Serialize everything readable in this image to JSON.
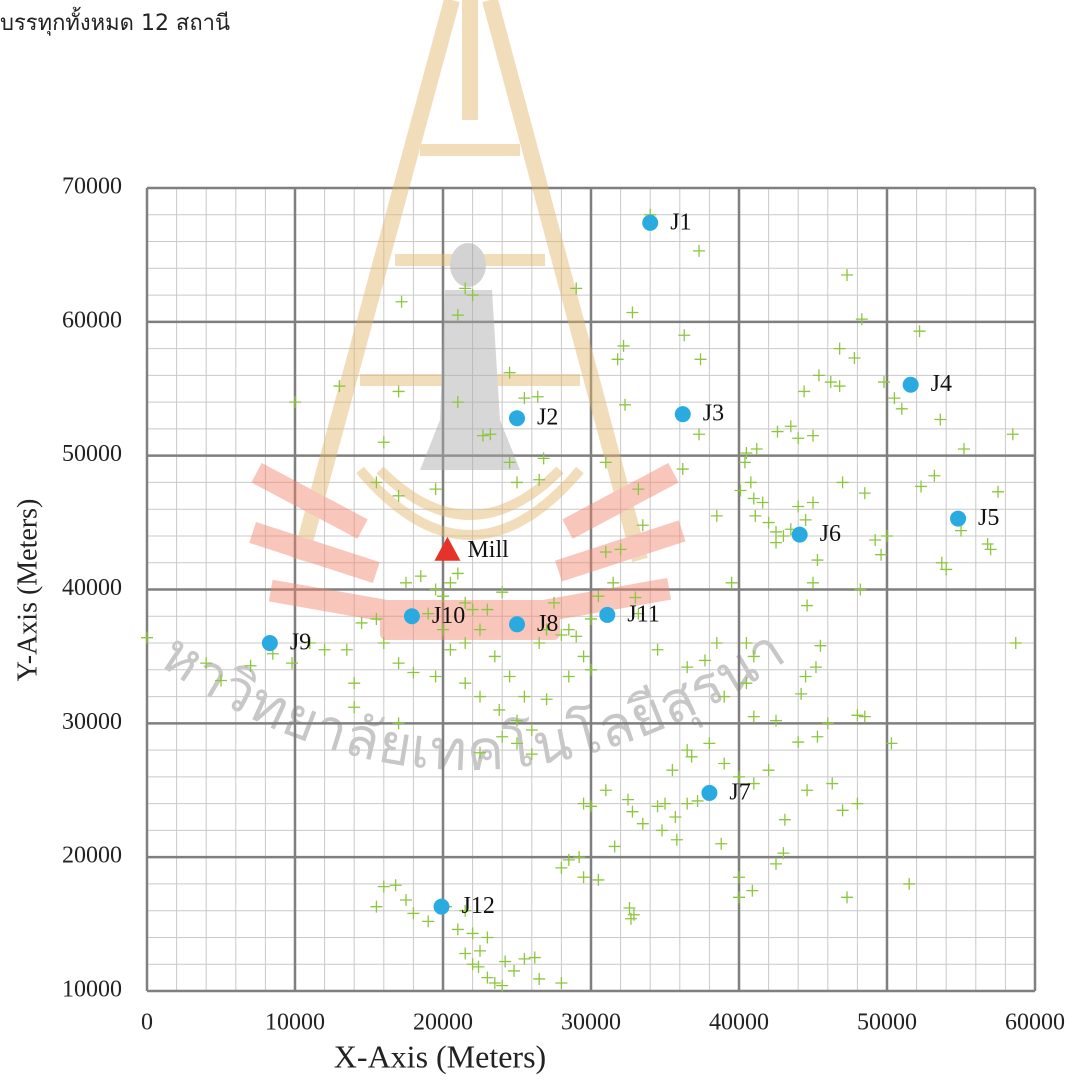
{
  "header_text": "บรรทุกทั้งหมด 12 สถานี",
  "watermark": "มหาวิทยาลัยเทคโนโลยีสุรนารี",
  "chart_data": {
    "type": "scatter",
    "x_label": "X-Axis (Meters)",
    "y_label": "Y-Axis (Meters)",
    "xlim": [
      0,
      60000
    ],
    "ylim": [
      10000,
      70000
    ],
    "xticks": [
      0,
      10000,
      20000,
      30000,
      40000,
      50000,
      60000
    ],
    "yticks": [
      10000,
      20000,
      30000,
      40000,
      50000,
      60000,
      70000
    ],
    "grid": true,
    "minor_grid": true,
    "series": [
      {
        "marker": "plus",
        "color": "#8cc63f",
        "x": [
          21500,
          22000,
          21000,
          17200,
          13000,
          17000,
          10000,
          21000,
          24500,
          25500,
          26400,
          22700,
          23200,
          24500,
          25000,
          26800,
          26500,
          29000,
          32800,
          32200,
          31800,
          32300,
          31000,
          33200,
          33500,
          34000,
          37300,
          36300,
          37400,
          37300,
          36200,
          38500,
          17000,
          16000,
          15500,
          19500,
          47300,
          48300,
          52200,
          46800,
          47800,
          46200,
          46800,
          45400,
          44400,
          49800,
          50500,
          51000,
          53600,
          43500,
          42600,
          44000,
          45000,
          40500,
          41200,
          40400,
          40800,
          40100,
          41000,
          41600,
          41100,
          42000,
          42500,
          43000,
          43500,
          42500,
          44500,
          45000,
          44000,
          45300,
          47000,
          48500,
          50000,
          49200,
          49600,
          48200,
          53700,
          54000,
          57000,
          57500,
          58500,
          55200,
          53200,
          52300,
          55000,
          56800,
          58700,
          17500,
          18500,
          19500,
          20000,
          20500,
          21000,
          21500,
          22000,
          19000,
          20000,
          20500,
          21500,
          22500,
          23000,
          24000,
          23500,
          24500,
          25500,
          26500,
          27000,
          27500,
          28000,
          28500,
          29000,
          29500,
          30000,
          30500,
          31500,
          31000,
          32000,
          33000,
          33200,
          34500,
          36500,
          37700,
          30000,
          28500,
          27000,
          26000,
          25000,
          23800,
          22500,
          21500,
          19500,
          18000,
          17000,
          16000,
          15500,
          14500,
          14000,
          13500,
          12000,
          11000,
          9800,
          8500,
          7000,
          5000,
          4000,
          0,
          14000,
          17000,
          22500,
          25000,
          26000,
          24000,
          38000,
          39000,
          40000,
          41000,
          36500,
          35500,
          36800,
          34500,
          35000,
          35700,
          36500,
          37200,
          35800,
          34800,
          33500,
          32500,
          32800,
          31000,
          30000,
          29500,
          29200,
          28500,
          28000,
          29500,
          30500,
          31600,
          32600,
          32900,
          32700,
          38800,
          40000,
          40000,
          40900,
          42500,
          43000,
          43100,
          42000,
          42500,
          44000,
          44200,
          44500,
          45200,
          45500,
          44600,
          45000,
          46000,
          46300,
          44600,
          45300,
          47000,
          47300,
          48000,
          48000,
          48500,
          50300,
          51500,
          41000,
          40500,
          41000,
          40500,
          39500,
          38500,
          39000,
          15500,
          16000,
          16800,
          17500,
          18000,
          19000,
          20200,
          21500,
          21000,
          22000,
          22500,
          23000,
          21500,
          22400,
          23000,
          23500,
          24200,
          24800,
          25500,
          26200,
          26500,
          28000,
          22000,
          24000
        ],
        "values": [
          62500,
          62000,
          60500,
          61500,
          55200,
          54800,
          54000,
          54000,
          56200,
          54300,
          54400,
          51500,
          51600,
          49500,
          48000,
          49800,
          48200,
          62500,
          60700,
          58200,
          57200,
          53800,
          49500,
          47500,
          44800,
          68000,
          65300,
          59000,
          57200,
          51600,
          49000,
          45500,
          47000,
          51000,
          48000,
          47500,
          63500,
          60200,
          59300,
          58000,
          57300,
          55500,
          55200,
          56000,
          54800,
          55500,
          54300,
          53500,
          52700,
          52200,
          51800,
          51300,
          51500,
          50200,
          50500,
          49500,
          48000,
          47400,
          46800,
          46500,
          45500,
          45000,
          44300,
          44000,
          44500,
          43500,
          45200,
          46500,
          46200,
          42200,
          48000,
          47200,
          44000,
          43700,
          42600,
          40000,
          42000,
          41500,
          43000,
          47300,
          51600,
          50500,
          48500,
          47700,
          44400,
          43400,
          36000,
          40500,
          41000,
          40000,
          39500,
          40500,
          41200,
          39000,
          38500,
          38200,
          37000,
          35500,
          36000,
          37000,
          38500,
          39800,
          35000,
          33500,
          32000,
          36000,
          37000,
          39000,
          36600,
          37000,
          36500,
          35000,
          37800,
          39500,
          40500,
          42800,
          43000,
          39400,
          38200,
          35500,
          34200,
          34700,
          34000,
          33500,
          31800,
          29500,
          30200,
          31000,
          32000,
          33000,
          33500,
          33800,
          34500,
          36000,
          37800,
          37500,
          33000,
          35500,
          35500,
          36000,
          34500,
          35200,
          34300,
          33200,
          34500,
          36400,
          31200,
          30000,
          27800,
          28500,
          27700,
          29000,
          28500,
          27000,
          26000,
          25500,
          28000,
          26500,
          27500,
          23800,
          24000,
          23000,
          24000,
          24200,
          21300,
          22000,
          22500,
          24300,
          23400,
          25000,
          23800,
          24000,
          20000,
          19800,
          19200,
          18500,
          18300,
          20800,
          16200,
          15700,
          15400,
          21000,
          18500,
          17000,
          17500,
          19500,
          20300,
          22800,
          26500,
          30200,
          28600,
          32200,
          33500,
          34200,
          35800,
          38800,
          40500,
          30000,
          25500,
          25000,
          29000,
          23500,
          17000,
          24000,
          30600,
          30500,
          28500,
          18000,
          30500,
          33000,
          35000,
          36000,
          40500,
          36000,
          32000,
          16300,
          17800,
          17900,
          16800,
          15800,
          15200,
          16300,
          16000,
          14600,
          14300,
          13000,
          14000,
          12800,
          11800,
          11000,
          10600,
          12200,
          11500,
          12400,
          12500,
          10900,
          10600,
          12000,
          10400
        ]
      },
      {
        "marker": "circle",
        "color": "#29abe2",
        "labels": [
          "J1",
          "J2",
          "J3",
          "J4",
          "J5",
          "J6",
          "J7",
          "J8",
          "J9",
          "J10",
          "J11",
          "J12"
        ],
        "x": [
          34000,
          25000,
          36200,
          51600,
          54800,
          44100,
          38000,
          25000,
          8300,
          17900,
          31100,
          19900
        ],
        "values": [
          67400,
          52800,
          53100,
          55300,
          45300,
          44100,
          24800,
          37400,
          36000,
          38000,
          38100,
          16300
        ]
      },
      {
        "marker": "triangle",
        "color": "#e53329",
        "labels": [
          "Mill"
        ],
        "x": [
          20300
        ],
        "values": [
          42900
        ]
      }
    ]
  }
}
